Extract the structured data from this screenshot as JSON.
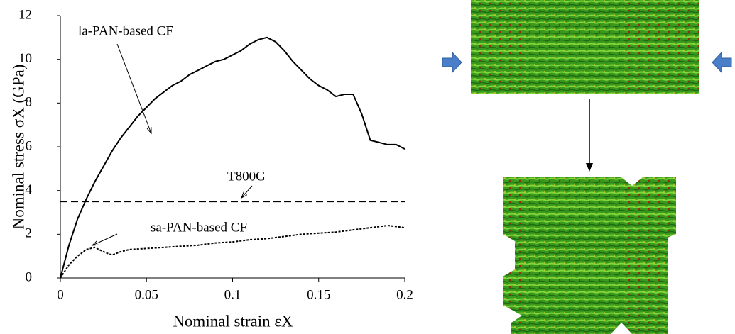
{
  "chart_data": {
    "type": "line",
    "x_label": "Nominal strain εX",
    "y_label": "Nominal stress σX (GPa)",
    "xlim": [
      0,
      0.2
    ],
    "xticks": [
      0,
      0.05,
      0.1,
      0.15,
      0.2
    ],
    "ylim": [
      0,
      12
    ],
    "yticks": [
      0,
      2,
      4,
      6,
      8,
      10,
      12
    ],
    "series": [
      {
        "name": "la-PAN-based CF",
        "color": "#000000",
        "dash": "solid",
        "x": [
          0,
          0.005,
          0.01,
          0.015,
          0.02,
          0.025,
          0.03,
          0.035,
          0.04,
          0.045,
          0.05,
          0.055,
          0.06,
          0.065,
          0.07,
          0.075,
          0.08,
          0.085,
          0.09,
          0.095,
          0.1,
          0.105,
          0.11,
          0.115,
          0.12,
          0.125,
          0.13,
          0.135,
          0.14,
          0.145,
          0.15,
          0.155,
          0.16,
          0.165,
          0.17,
          0.175,
          0.18,
          0.185,
          0.19,
          0.195,
          0.2
        ],
        "values": [
          0,
          1.5,
          2.7,
          3.6,
          4.4,
          5.1,
          5.8,
          6.4,
          6.9,
          7.4,
          7.8,
          8.2,
          8.5,
          8.8,
          9.0,
          9.3,
          9.5,
          9.7,
          9.9,
          10.0,
          10.2,
          10.4,
          10.7,
          10.9,
          11.0,
          10.8,
          10.4,
          9.9,
          9.5,
          9.1,
          8.8,
          8.6,
          8.3,
          8.4,
          8.4,
          7.5,
          6.3,
          6.2,
          6.1,
          6.1,
          5.9
        ]
      },
      {
        "name": "T800G",
        "color": "#000000",
        "dash": "dashed",
        "x": [
          0,
          0.2
        ],
        "values": [
          3.5,
          3.5
        ]
      },
      {
        "name": "sa-PAN-based CF",
        "color": "#000000",
        "dash": "dotted",
        "x": [
          0,
          0.005,
          0.01,
          0.015,
          0.02,
          0.025,
          0.03,
          0.035,
          0.04,
          0.05,
          0.06,
          0.07,
          0.08,
          0.09,
          0.1,
          0.11,
          0.12,
          0.13,
          0.14,
          0.15,
          0.16,
          0.17,
          0.18,
          0.19,
          0.2
        ],
        "values": [
          0,
          0.6,
          1.0,
          1.3,
          1.4,
          1.2,
          1.05,
          1.2,
          1.3,
          1.35,
          1.4,
          1.45,
          1.5,
          1.6,
          1.65,
          1.75,
          1.8,
          1.9,
          2.0,
          2.05,
          2.1,
          2.2,
          2.3,
          2.4,
          2.3
        ]
      }
    ]
  }
}
